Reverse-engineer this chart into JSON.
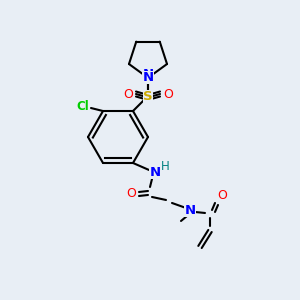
{
  "background_color": "#e8eef5",
  "bond_color": "#000000",
  "atom_colors": {
    "N": "#0000ff",
    "O": "#ff0000",
    "S": "#ccaa00",
    "Cl": "#00cc00",
    "H": "#008080",
    "C": "#000000"
  },
  "figsize": [
    3.0,
    3.0
  ],
  "dpi": 100
}
